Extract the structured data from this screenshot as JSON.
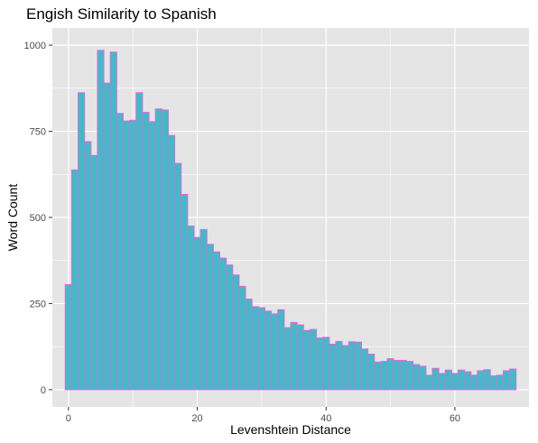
{
  "chart_data": {
    "type": "bar",
    "title": "Engish Similarity to Spanish",
    "xlabel": "Levenshtein Distance",
    "ylabel": "Word Count",
    "x": [
      0,
      1,
      2,
      3,
      4,
      5,
      6,
      7,
      8,
      9,
      10,
      11,
      12,
      13,
      14,
      15,
      16,
      17,
      18,
      19,
      20,
      21,
      22,
      23,
      24,
      25,
      26,
      27,
      28,
      29,
      30,
      31,
      32,
      33,
      34,
      35,
      36,
      37,
      38,
      39,
      40,
      41,
      42,
      43,
      44,
      45,
      46,
      47,
      48,
      49,
      50,
      51,
      52,
      53,
      54,
      55,
      56,
      57,
      58,
      59,
      60,
      61,
      62,
      63,
      64,
      65,
      66,
      67,
      68,
      69
    ],
    "values": [
      305,
      638,
      862,
      720,
      680,
      985,
      890,
      980,
      802,
      780,
      782,
      862,
      805,
      778,
      815,
      812,
      738,
      657,
      567,
      475,
      442,
      465,
      422,
      400,
      382,
      362,
      333,
      300,
      263,
      241,
      238,
      228,
      220,
      232,
      180,
      195,
      188,
      172,
      175,
      150,
      152,
      132,
      140,
      128,
      139,
      138,
      118,
      103,
      80,
      82,
      90,
      85,
      85,
      82,
      73,
      68,
      42,
      62,
      47,
      57,
      47,
      57,
      52,
      42,
      55,
      58,
      40,
      42,
      55,
      60
    ],
    "xlim": [
      -2.5,
      71.5
    ],
    "ylim": [
      -50,
      1050
    ],
    "xticks": [
      0,
      20,
      40,
      60
    ],
    "yticks": [
      0,
      250,
      500,
      750,
      1000
    ],
    "x_tick_labels": [
      "0",
      "20",
      "40",
      "60"
    ],
    "y_tick_labels": [
      "0",
      "250",
      "500",
      "750",
      "1000"
    ],
    "grid": true,
    "fill_color": "#3dbdc6",
    "outline_color": "#e066e0",
    "panel_color": "#e5e5e5",
    "grid_color": "#ffffff"
  }
}
